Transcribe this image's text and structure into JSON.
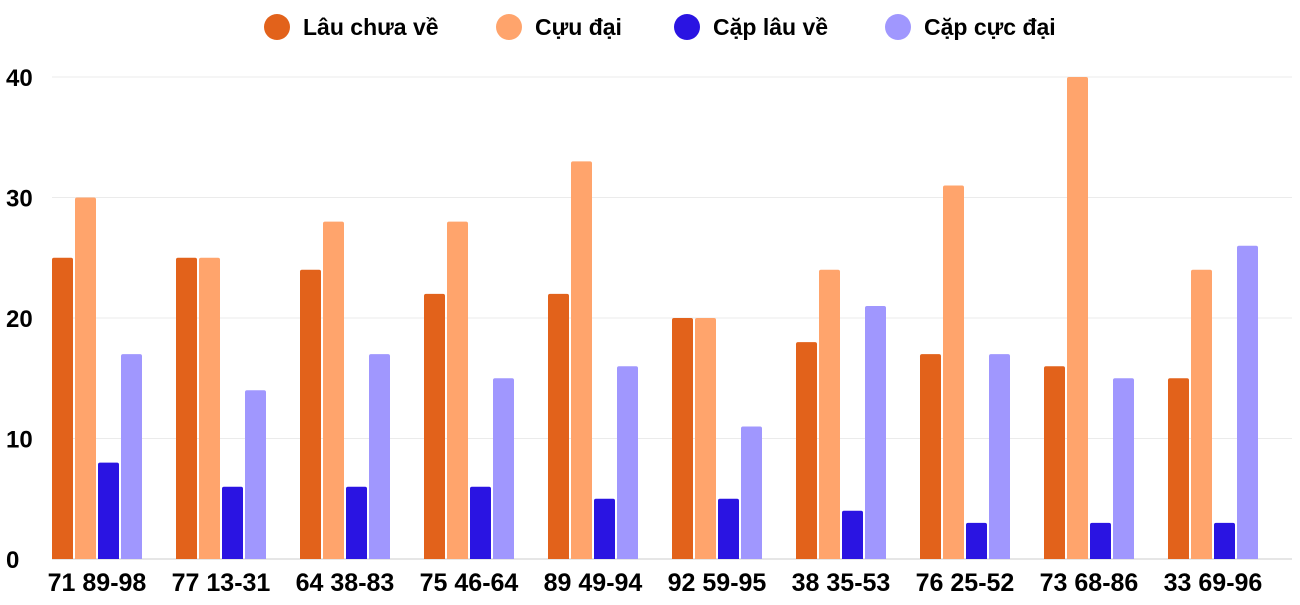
{
  "chart_data": {
    "type": "bar",
    "title": "",
    "xlabel": "",
    "ylabel": "",
    "ylim": [
      0,
      40
    ],
    "yticks": [
      "0",
      "10",
      "20",
      "30",
      "40"
    ],
    "grid": true,
    "legend_position": "top",
    "categories": [
      "71 89-98",
      "77 13-31",
      "64 38-83",
      "75 46-64",
      "89 49-94",
      "92 59-95",
      "38 35-53",
      "76 25-52",
      "73 68-86",
      "33 69-96"
    ],
    "series": [
      {
        "name": "Lâu chưa về",
        "color": "#E2621B",
        "values": [
          25,
          25,
          24,
          22,
          22,
          20,
          18,
          17,
          16,
          15
        ]
      },
      {
        "name": "Cựu đại",
        "color": "#FFA46C",
        "values": [
          30,
          25,
          28,
          28,
          33,
          20,
          24,
          31,
          40,
          24
        ]
      },
      {
        "name": "Cặp lâu về",
        "color": "#2A14E2",
        "values": [
          8,
          6,
          6,
          6,
          5,
          5,
          4,
          3,
          3,
          3
        ]
      },
      {
        "name": "Cặp cực đại",
        "color": "#A097FE",
        "values": [
          17,
          14,
          17,
          15,
          16,
          11,
          21,
          17,
          15,
          26
        ]
      }
    ]
  }
}
